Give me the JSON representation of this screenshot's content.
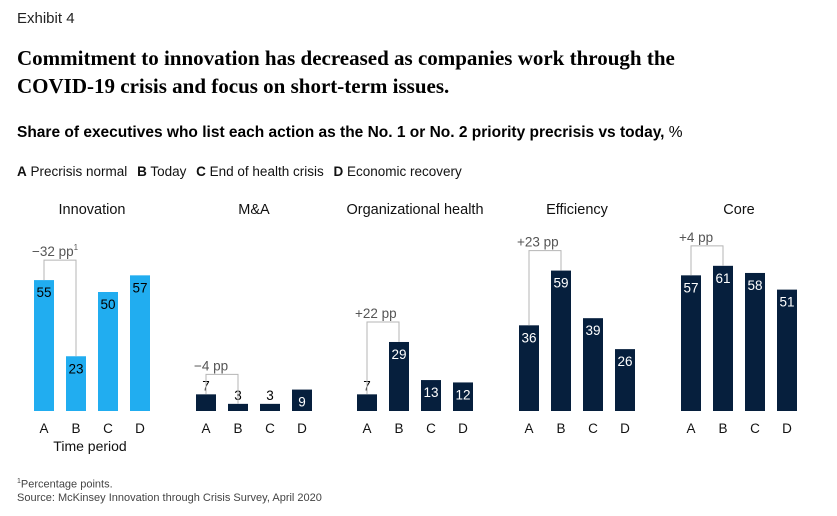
{
  "exhibit_label": "Exhibit 4",
  "headline_line1": "Commitment to innovation has decreased as companies work through the",
  "headline_line2": "COVID-19 crisis and focus on short-term issues.",
  "subtitle": "Share of executives who list each action as the No. 1 or No. 2 priority precrisis vs today,",
  "subtitle_unit": " %",
  "legend": [
    {
      "key": "A",
      "label": "Precrisis normal"
    },
    {
      "key": "B",
      "label": "Today"
    },
    {
      "key": "C",
      "label": "End of health crisis"
    },
    {
      "key": "D",
      "label": "Economic recovery"
    }
  ],
  "footnote": {
    "marker": "1",
    "text": "Percentage points.",
    "source": "Source: McKinsey Innovation through Crisis Survey, April 2020"
  },
  "chart_data": {
    "type": "bar",
    "y_unit": "%",
    "categories": [
      "A",
      "B",
      "C",
      "D"
    ],
    "x_axis_label": "Time period",
    "colors": {
      "highlight": "#21ADF0",
      "default": "#061F3D",
      "bracket": "#B5B5B5",
      "annotation": "#555555"
    },
    "panels": [
      {
        "title": "Innovation",
        "values": [
          55,
          23,
          50,
          57
        ],
        "highlight": true,
        "annotation": "−32 pp",
        "annotation_sup": "1"
      },
      {
        "title": "M&A",
        "values": [
          7,
          3,
          3,
          9
        ],
        "highlight": false,
        "annotation": "−4 pp",
        "annotation_sup": ""
      },
      {
        "title": "Organizational health",
        "values": [
          7,
          29,
          13,
          12
        ],
        "highlight": false,
        "annotation": "+22 pp",
        "annotation_sup": ""
      },
      {
        "title": "Efficiency",
        "values": [
          36,
          59,
          39,
          26
        ],
        "highlight": false,
        "annotation": "+23 pp",
        "annotation_sup": ""
      },
      {
        "title": "Core",
        "values": [
          57,
          61,
          58,
          51
        ],
        "highlight": false,
        "annotation": "+4 pp",
        "annotation_sup": ""
      }
    ]
  }
}
